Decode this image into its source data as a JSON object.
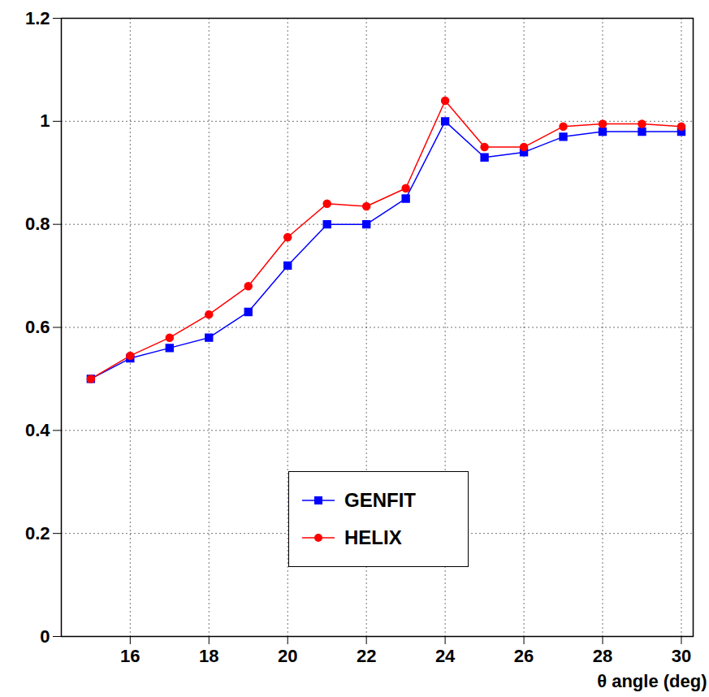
{
  "chart_data": {
    "type": "line",
    "x_label": "θ angle (deg)",
    "x": [
      15,
      16,
      17,
      18,
      19,
      20,
      21,
      22,
      23,
      24,
      25,
      26,
      27,
      28,
      29,
      30
    ],
    "series": [
      {
        "name": "GENFIT",
        "color": "#0000ff",
        "marker": "square",
        "values": [
          0.5,
          0.54,
          0.56,
          0.58,
          0.63,
          0.72,
          0.8,
          0.8,
          0.85,
          1.0,
          0.93,
          0.94,
          0.97,
          0.98,
          0.98,
          0.98
        ]
      },
      {
        "name": "HELIX",
        "color": "#ff0000",
        "marker": "circle",
        "values": [
          0.5,
          0.545,
          0.58,
          0.625,
          0.68,
          0.775,
          0.84,
          0.835,
          0.87,
          1.04,
          0.95,
          0.95,
          0.99,
          0.995,
          0.995,
          0.99
        ]
      }
    ],
    "xlim": [
      14.25,
      30.3
    ],
    "xticks": [
      16,
      18,
      20,
      22,
      24,
      26,
      28,
      30
    ],
    "ylim": [
      0,
      1.2
    ],
    "yticks": [
      0,
      0.2,
      0.4,
      0.6,
      0.8,
      1,
      1.2
    ],
    "grid": true,
    "legend": "lower center"
  }
}
